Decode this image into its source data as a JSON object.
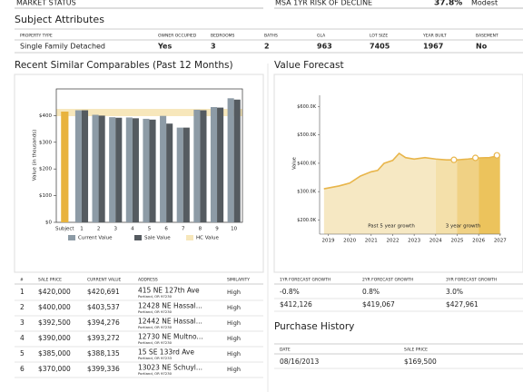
{
  "market_status": {
    "label": "MARKET STATUS",
    "risk_label": "MSA 1YR RISK OF DECLINE",
    "risk_value": "37.8%",
    "risk_level": "Modest"
  },
  "subject_attributes": {
    "title": "Subject Attributes",
    "headers": [
      "PROPERTY TYPE",
      "OWNER OCCUPIED",
      "BEDROOMS",
      "BATHS",
      "GLA",
      "LOT SIZE",
      "YEAR BUILT",
      "BASEMENT"
    ],
    "row": [
      "Single Family Detached",
      "Yes",
      "3",
      "2",
      "963",
      "7405",
      "1967",
      "No"
    ]
  },
  "comparables_chart": {
    "type": "bar",
    "title": "Recent Similar Comparables (Past 12 Months)",
    "y_label": "Value (in thousands)",
    "categories": [
      "Subject",
      "1",
      "2",
      "3",
      "4",
      "5",
      "6",
      "7",
      "8",
      "9",
      "10"
    ],
    "subject": {
      "value": 415,
      "color": "#e8b33e"
    },
    "series": [
      {
        "name": "Current Value",
        "color": "#8d9ba6",
        "values": [
          null,
          420,
          403,
          394,
          393,
          388,
          399,
          355,
          422,
          432,
          465
        ]
      },
      {
        "name": "Sale Value",
        "color": "#555b60",
        "values": [
          null,
          420,
          400,
          392,
          390,
          385,
          370,
          355,
          420,
          430,
          460
        ]
      },
      {
        "name": "HC Value",
        "color": "#f7e7bb",
        "range": [
          398,
          425
        ]
      }
    ],
    "ylim": [
      0,
      500
    ],
    "yticks": [
      {
        "value": 0,
        "label": "$0"
      },
      {
        "value": 100,
        "label": "$100"
      },
      {
        "value": 200,
        "label": "$200"
      },
      {
        "value": 300,
        "label": "$300"
      },
      {
        "value": 400,
        "label": "$400"
      }
    ]
  },
  "forecast_chart": {
    "type": "area",
    "title": "Value Forecast",
    "y_label": "Value",
    "color": "#e8b54a",
    "x": [
      2018.8,
      2019.5,
      2020,
      2020.5,
      2021,
      2021.3,
      2021.6,
      2022,
      2022.3,
      2022.6,
      2023,
      2023.5,
      2024,
      2024.5,
      2025,
      2025.5,
      2026,
      2026.5,
      2027
    ],
    "values": [
      310000,
      320000,
      330000,
      355000,
      370000,
      375000,
      400000,
      410000,
      435000,
      420000,
      415000,
      420000,
      415000,
      412000,
      412000,
      415000,
      419000,
      420000,
      428000
    ],
    "markers": {
      "x": [
        2024.85,
        2025.85,
        2026.85
      ],
      "values": [
        412126,
        419067,
        427961
      ]
    },
    "regions": [
      {
        "x": [
          2018.8,
          2024
        ],
        "color": "#f6e8c3"
      },
      {
        "x": [
          2024,
          2025
        ],
        "color": "#f4e0aa"
      },
      {
        "x": [
          2025,
          2026
        ],
        "color": "#f0d184"
      },
      {
        "x": [
          2026,
          2027
        ],
        "color": "#ecc35c"
      }
    ],
    "annotations": [
      "Past 5 year growth",
      "3 year growth"
    ],
    "xlim": [
      2018.6,
      2027.05
    ],
    "xticks": [
      2019,
      2020,
      2021,
      2022,
      2023,
      2024,
      2025,
      2026,
      2027
    ],
    "ylim": [
      150000,
      640000
    ],
    "yticks": [
      {
        "value": 200000,
        "label": "$200.0K"
      },
      {
        "value": 300000,
        "label": "$300.0K"
      },
      {
        "value": 400000,
        "label": "$400.0K"
      },
      {
        "value": 500000,
        "label": "$500.0K"
      },
      {
        "value": 600000,
        "label": "$600.0K"
      }
    ]
  },
  "comparables_table": {
    "headers": [
      "#",
      "SALE PRICE",
      "CURRENT VALUE",
      "ADDRESS",
      "SIMILARITY"
    ],
    "rows": [
      [
        "1",
        "$420,000",
        "$420,691",
        "415 NE 127th Ave",
        "Portland, OR 97230",
        "High"
      ],
      [
        "2",
        "$400,000",
        "$403,537",
        "12428 NE Hassal...",
        "Portland, OR 97230",
        "High"
      ],
      [
        "3",
        "$392,500",
        "$394,276",
        "12442 NE Hassal...",
        "Portland, OR 97230",
        "High"
      ],
      [
        "4",
        "$390,000",
        "$393,272",
        "12730 NE Multno...",
        "Portland, OR 97230",
        "High"
      ],
      [
        "5",
        "$385,000",
        "$388,135",
        "15 SE 133rd Ave",
        "Portland, OR 97233",
        "High"
      ],
      [
        "6",
        "$370,000",
        "$399,336",
        "13023 NE Schuyl...",
        "Portland, OR 97230",
        "High"
      ]
    ]
  },
  "forecast_table": {
    "headers": [
      "1YR FORECAST GROWTH",
      "2YR FORECAST GROWTH",
      "3YR FORECAST GROWTH"
    ],
    "rows": [
      [
        "-0.8%",
        "0.8%",
        "3.0%"
      ],
      [
        "$412,126",
        "$419,067",
        "$427,961"
      ]
    ]
  },
  "purchase_history": {
    "title": "Purchase History",
    "headers": [
      "DATE",
      "SALE PRICE"
    ],
    "rows": [
      [
        "08/16/2013",
        "$169,500"
      ]
    ]
  }
}
